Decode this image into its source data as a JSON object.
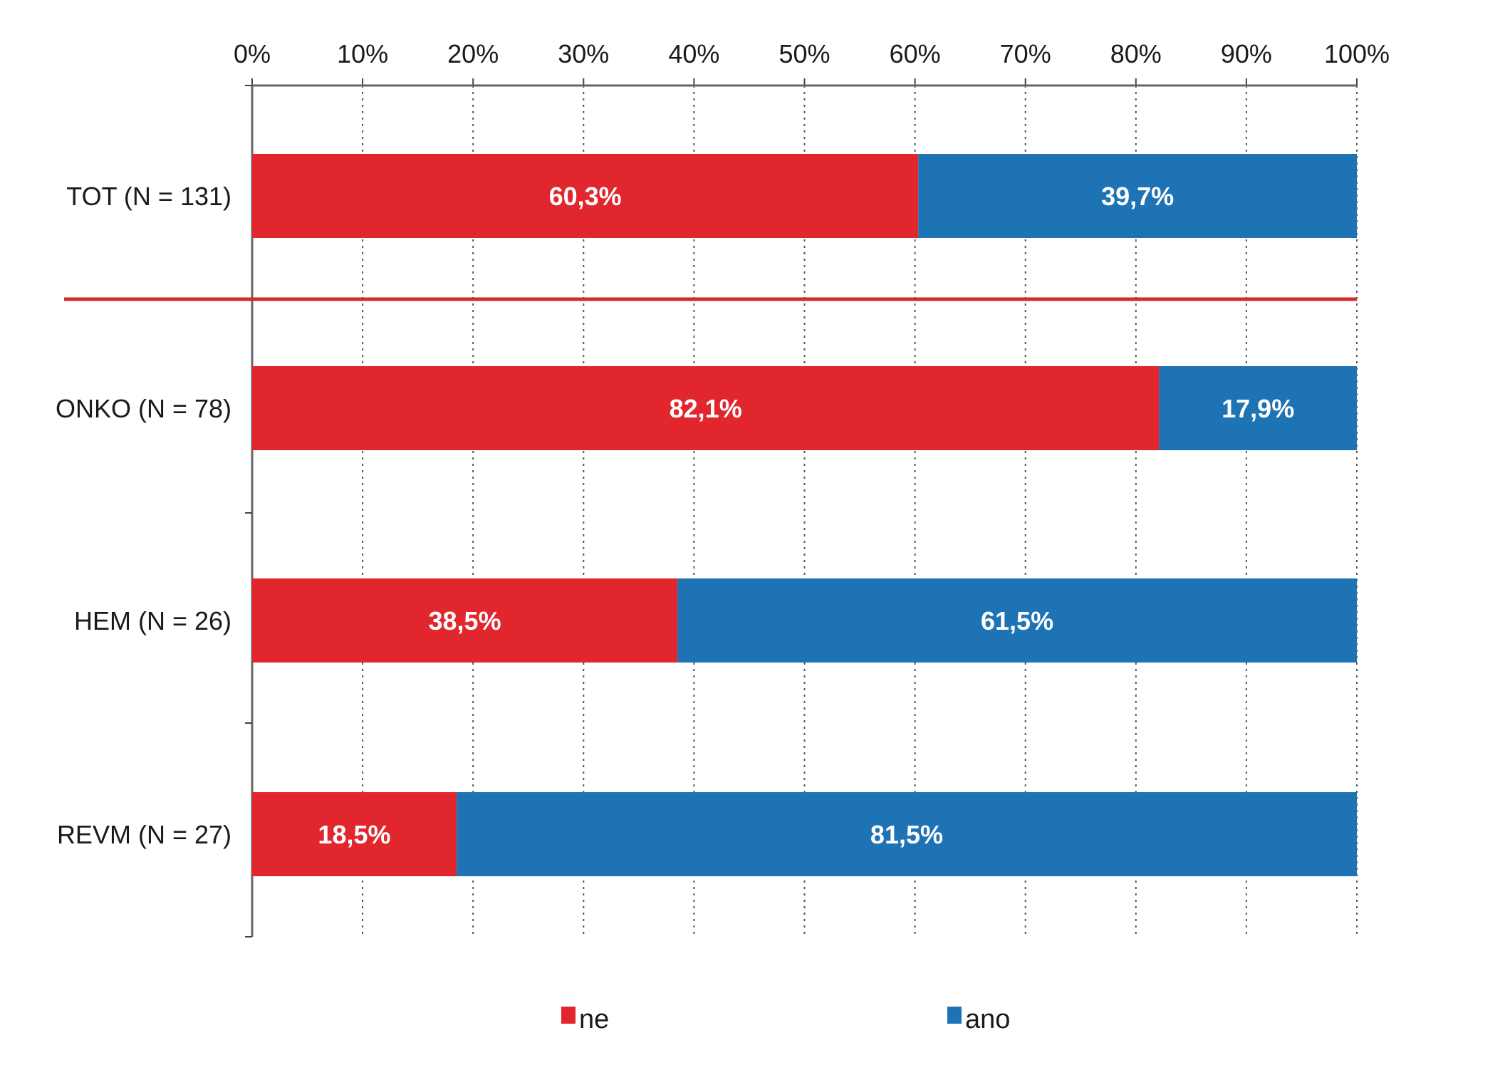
{
  "chart_data": {
    "type": "bar",
    "orientation": "horizontal",
    "stacked": true,
    "percent": true,
    "categories": [
      "TOT (N = 131)",
      "ONKO (N = 78)",
      "HEM (N = 26)",
      "REVM (N = 27)"
    ],
    "series": [
      {
        "name": "ne",
        "color": "#e1262d",
        "values": [
          60.3,
          82.1,
          38.5,
          18.5
        ],
        "labels": [
          "60,3%",
          "82,1%",
          "38,5%",
          "18,5%"
        ]
      },
      {
        "name": "ano",
        "color": "#1e73b4",
        "values": [
          39.7,
          17.9,
          61.5,
          81.5
        ],
        "labels": [
          "39,7%",
          "17,9%",
          "61,5%",
          "81,5%"
        ]
      }
    ],
    "xlim": [
      0,
      100
    ],
    "x_ticks": [
      "0%",
      "10%",
      "20%",
      "30%",
      "40%",
      "50%",
      "60%",
      "70%",
      "80%",
      "90%",
      "100%"
    ],
    "x_axis_position": "top",
    "grid": "vertical-dotted",
    "legend_position": "bottom",
    "separator_after_category": "TOT (N = 131)",
    "separator_color": "#d62a2a"
  }
}
